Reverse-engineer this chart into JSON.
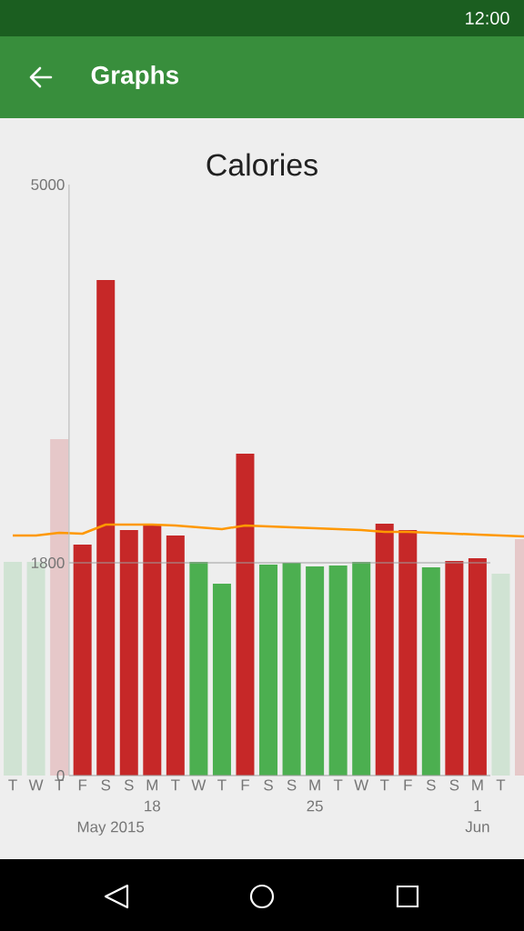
{
  "chart_data": {
    "type": "bar",
    "title": "Calories",
    "categories": [
      "T",
      "W",
      "T",
      "F",
      "S",
      "S",
      "M",
      "T",
      "W",
      "T",
      "F",
      "S",
      "S",
      "M",
      "T",
      "W",
      "T",
      "F",
      "S",
      "S",
      "M",
      "T",
      null
    ],
    "series": [
      {
        "colors": [
          "#d0e3d3",
          "#d0e3d3",
          "#e6c8c9",
          "#c62828",
          "#c62828",
          "#c62828",
          "#c62828",
          "#c62828",
          "#4caf50",
          "#4caf50",
          "#c62828",
          "#4caf50",
          "#4caf50",
          "#4caf50",
          "#4caf50",
          "#4caf50",
          "#c62828",
          "#c62828",
          "#4caf50",
          "#c62828",
          "#c62828",
          "#d0e3d3",
          "#e6c8c9"
        ],
        "values": [
          1808,
          1808,
          2846,
          1954,
          4192,
          2077,
          2115,
          2031,
          1808,
          1623,
          2723,
          1785,
          1800,
          1769,
          1777,
          1808,
          2131,
          2077,
          1762,
          1815,
          1838,
          1708,
          2000
        ]
      },
      {
        "type": "line",
        "color": "#ff9800",
        "values": [
          2031,
          2031,
          2054,
          2046,
          2123,
          2123,
          2123,
          2115,
          2100,
          2085,
          2115,
          2108,
          2100,
          2092,
          2085,
          2077,
          2062,
          2062,
          2054,
          2046,
          2038,
          2031,
          2023
        ]
      }
    ],
    "ylim": [
      0,
      5000
    ],
    "yticks": [
      0,
      1800,
      5000
    ],
    "ref_lines": [
      {
        "axis": "y",
        "value": 1800,
        "color": "#9e9e9e"
      }
    ],
    "annotations": [
      "18",
      "25",
      "1",
      "May 2015",
      "Jun",
      "Graphs",
      "12:00"
    ],
    "grid": false
  }
}
